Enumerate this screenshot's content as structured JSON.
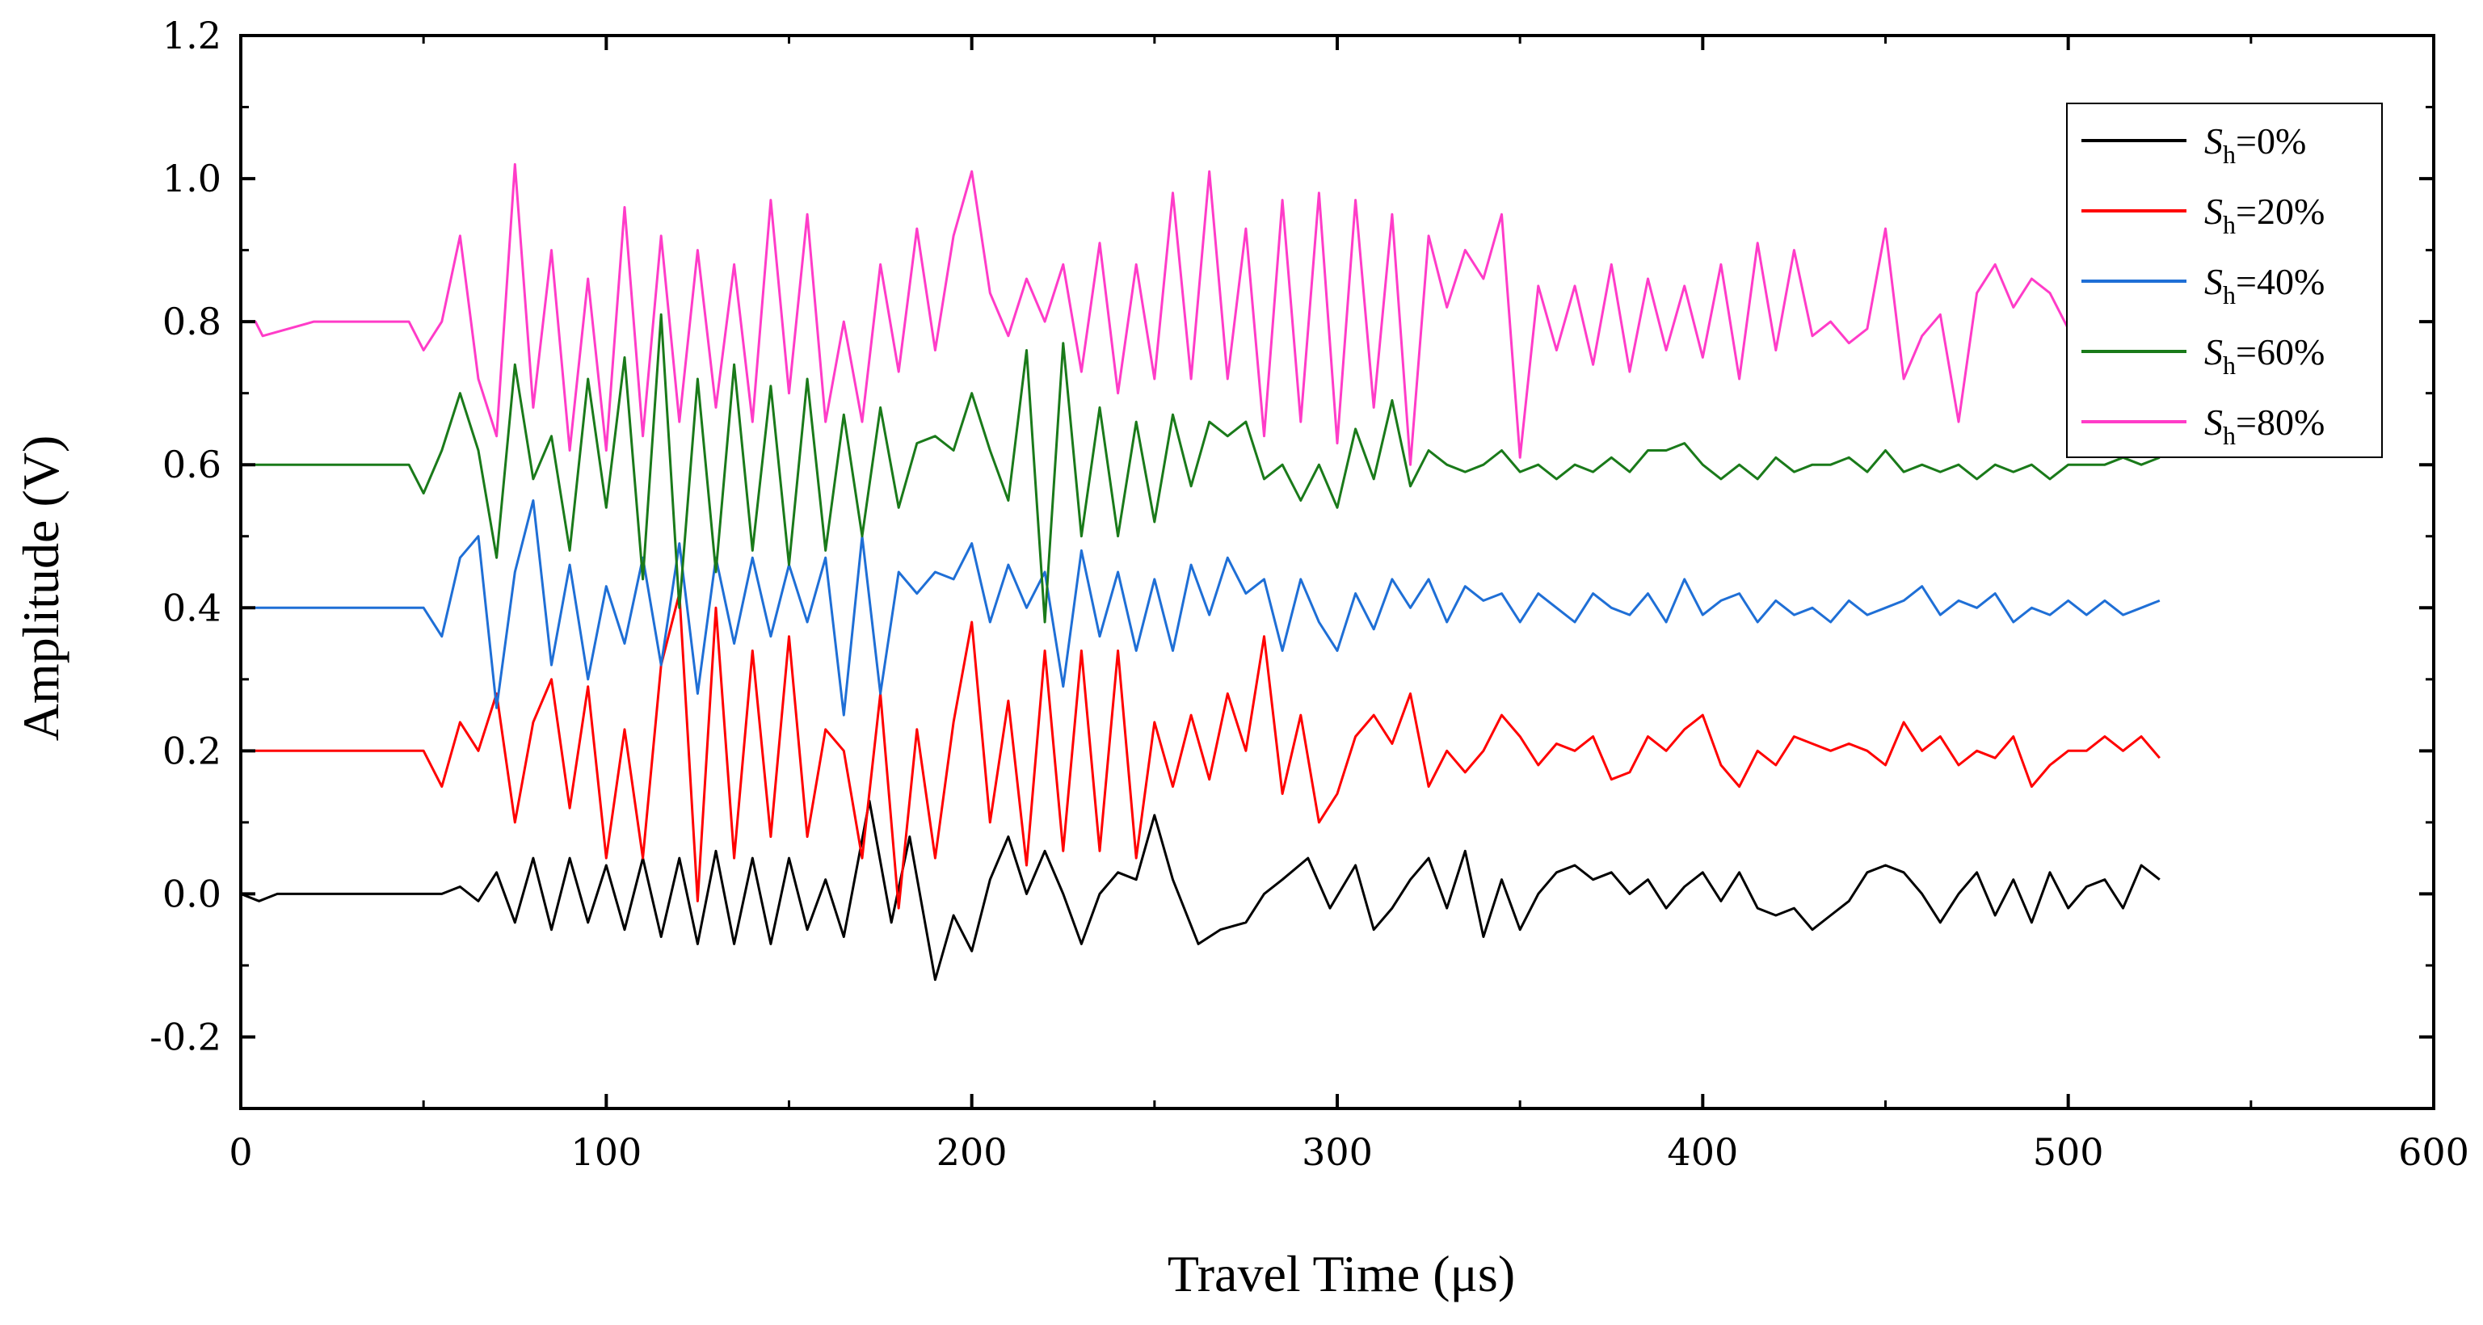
{
  "chart_data": {
    "type": "line",
    "title": "",
    "xlabel": "Travel Time (μs)",
    "ylabel": "Amplitude (V)",
    "xlim": [
      0,
      600
    ],
    "ylim": [
      -0.3,
      1.2
    ],
    "x_ticks": [
      0,
      100,
      200,
      300,
      400,
      500,
      600
    ],
    "x_tick_labels": [
      "0",
      "100",
      "200",
      "300",
      "400",
      "500",
      "600"
    ],
    "y_ticks": [
      -0.2,
      0.0,
      0.2,
      0.4,
      0.6,
      0.8,
      1.0,
      1.2
    ],
    "y_tick_labels": [
      "-0.2",
      "0.0",
      "0.2",
      "0.4",
      "0.6",
      "0.8",
      "1.0",
      "1.2"
    ],
    "grid": false,
    "legend_position": "top-right",
    "series": [
      {
        "name_symbol": "S",
        "name_subscript": "h",
        "name_suffix": "=0%",
        "color": "#000000",
        "x": [
          0,
          5,
          10,
          20,
          30,
          40,
          50,
          55,
          60,
          65,
          70,
          75,
          80,
          85,
          90,
          95,
          100,
          105,
          110,
          115,
          120,
          125,
          130,
          135,
          140,
          145,
          150,
          155,
          160,
          165,
          172,
          178,
          183,
          190,
          195,
          200,
          205,
          210,
          215,
          220,
          225,
          230,
          235,
          240,
          245,
          250,
          255,
          262,
          268,
          275,
          280,
          285,
          292,
          298,
          305,
          310,
          315,
          320,
          325,
          330,
          335,
          340,
          345,
          350,
          355,
          360,
          365,
          370,
          375,
          380,
          385,
          390,
          395,
          400,
          405,
          410,
          415,
          420,
          425,
          430,
          435,
          440,
          445,
          450,
          455,
          460,
          465,
          470,
          475,
          480,
          485,
          490,
          495,
          500,
          505,
          510,
          515,
          520,
          525
        ],
        "y": [
          0.0,
          -0.01,
          0.0,
          0.0,
          0.0,
          0.0,
          0.0,
          0.0,
          0.01,
          -0.01,
          0.03,
          -0.04,
          0.05,
          -0.05,
          0.05,
          -0.04,
          0.04,
          -0.05,
          0.05,
          -0.06,
          0.05,
          -0.07,
          0.06,
          -0.07,
          0.05,
          -0.07,
          0.05,
          -0.05,
          0.02,
          -0.06,
          0.13,
          -0.04,
          0.08,
          -0.12,
          -0.03,
          -0.08,
          0.02,
          0.08,
          0.0,
          0.06,
          0.0,
          -0.07,
          0.0,
          0.03,
          0.02,
          0.11,
          0.02,
          -0.07,
          -0.05,
          -0.04,
          0.0,
          0.02,
          0.05,
          -0.02,
          0.04,
          -0.05,
          -0.02,
          0.02,
          0.05,
          -0.02,
          0.06,
          -0.06,
          0.02,
          -0.05,
          0.0,
          0.03,
          0.04,
          0.02,
          0.03,
          0.0,
          0.02,
          -0.02,
          0.01,
          0.03,
          -0.01,
          0.03,
          -0.02,
          -0.03,
          -0.02,
          -0.05,
          -0.03,
          -0.01,
          0.03,
          0.04,
          0.03,
          0.0,
          -0.04,
          0.0,
          0.03,
          -0.03,
          0.02,
          -0.04,
          0.03,
          -0.02,
          0.01,
          0.02,
          -0.02,
          0.04,
          0.02
        ]
      },
      {
        "name_symbol": "S",
        "name_subscript": "h",
        "name_suffix": "=20%",
        "color": "#ff0000",
        "x": [
          0,
          20,
          40,
          50,
          55,
          60,
          65,
          70,
          75,
          80,
          85,
          90,
          95,
          100,
          105,
          110,
          115,
          120,
          125,
          130,
          135,
          140,
          145,
          150,
          155,
          160,
          165,
          170,
          175,
          180,
          185,
          190,
          195,
          200,
          205,
          210,
          215,
          220,
          225,
          230,
          235,
          240,
          245,
          250,
          255,
          260,
          265,
          270,
          275,
          280,
          285,
          290,
          295,
          300,
          305,
          310,
          315,
          320,
          325,
          330,
          335,
          340,
          345,
          350,
          355,
          360,
          365,
          370,
          375,
          380,
          385,
          390,
          395,
          400,
          405,
          410,
          415,
          420,
          425,
          430,
          435,
          440,
          445,
          450,
          455,
          460,
          465,
          470,
          475,
          480,
          485,
          490,
          495,
          500,
          505,
          510,
          515,
          520,
          525
        ],
        "y": [
          0.2,
          0.2,
          0.2,
          0.2,
          0.15,
          0.24,
          0.2,
          0.28,
          0.1,
          0.24,
          0.3,
          0.12,
          0.29,
          0.05,
          0.23,
          0.05,
          0.32,
          0.42,
          -0.01,
          0.4,
          0.05,
          0.34,
          0.08,
          0.36,
          0.08,
          0.23,
          0.2,
          0.05,
          0.28,
          -0.02,
          0.23,
          0.05,
          0.24,
          0.38,
          0.1,
          0.27,
          0.04,
          0.34,
          0.06,
          0.34,
          0.06,
          0.34,
          0.05,
          0.24,
          0.15,
          0.25,
          0.16,
          0.28,
          0.2,
          0.36,
          0.14,
          0.25,
          0.1,
          0.14,
          0.22,
          0.25,
          0.21,
          0.28,
          0.15,
          0.2,
          0.17,
          0.2,
          0.25,
          0.22,
          0.18,
          0.21,
          0.2,
          0.22,
          0.16,
          0.17,
          0.22,
          0.2,
          0.23,
          0.25,
          0.18,
          0.15,
          0.2,
          0.18,
          0.22,
          0.21,
          0.2,
          0.21,
          0.2,
          0.18,
          0.24,
          0.2,
          0.22,
          0.18,
          0.2,
          0.19,
          0.22,
          0.15,
          0.18,
          0.2,
          0.2,
          0.22,
          0.2,
          0.22,
          0.19
        ]
      },
      {
        "name_symbol": "S",
        "name_subscript": "h",
        "name_suffix": "=40%",
        "color": "#1f6fd6",
        "x": [
          0,
          20,
          40,
          50,
          55,
          60,
          65,
          70,
          75,
          80,
          85,
          90,
          95,
          100,
          105,
          110,
          115,
          120,
          125,
          130,
          135,
          140,
          145,
          150,
          155,
          160,
          165,
          170,
          175,
          180,
          185,
          190,
          195,
          200,
          205,
          210,
          215,
          220,
          225,
          230,
          235,
          240,
          245,
          250,
          255,
          260,
          265,
          270,
          275,
          280,
          285,
          290,
          295,
          300,
          305,
          310,
          315,
          320,
          325,
          330,
          335,
          340,
          345,
          350,
          355,
          360,
          365,
          370,
          375,
          380,
          385,
          390,
          395,
          400,
          405,
          410,
          415,
          420,
          425,
          430,
          435,
          440,
          445,
          450,
          455,
          460,
          465,
          470,
          475,
          480,
          485,
          490,
          495,
          500,
          505,
          510,
          515,
          520,
          525
        ],
        "y": [
          0.4,
          0.4,
          0.4,
          0.4,
          0.36,
          0.47,
          0.5,
          0.26,
          0.45,
          0.55,
          0.32,
          0.46,
          0.3,
          0.43,
          0.35,
          0.47,
          0.32,
          0.49,
          0.28,
          0.47,
          0.35,
          0.47,
          0.36,
          0.46,
          0.38,
          0.47,
          0.25,
          0.5,
          0.28,
          0.45,
          0.42,
          0.45,
          0.44,
          0.49,
          0.38,
          0.46,
          0.4,
          0.45,
          0.29,
          0.48,
          0.36,
          0.45,
          0.34,
          0.44,
          0.34,
          0.46,
          0.39,
          0.47,
          0.42,
          0.44,
          0.34,
          0.44,
          0.38,
          0.34,
          0.42,
          0.37,
          0.44,
          0.4,
          0.44,
          0.38,
          0.43,
          0.41,
          0.42,
          0.38,
          0.42,
          0.4,
          0.38,
          0.42,
          0.4,
          0.39,
          0.42,
          0.38,
          0.44,
          0.39,
          0.41,
          0.42,
          0.38,
          0.41,
          0.39,
          0.4,
          0.38,
          0.41,
          0.39,
          0.4,
          0.41,
          0.43,
          0.39,
          0.41,
          0.4,
          0.42,
          0.38,
          0.4,
          0.39,
          0.41,
          0.39,
          0.41,
          0.39,
          0.4,
          0.41
        ]
      },
      {
        "name_symbol": "S",
        "name_subscript": "h",
        "name_suffix": "=60%",
        "color": "#1a7a1a",
        "x": [
          0,
          20,
          40,
          46,
          50,
          55,
          60,
          65,
          70,
          75,
          80,
          85,
          90,
          95,
          100,
          105,
          110,
          115,
          120,
          125,
          130,
          135,
          140,
          145,
          150,
          155,
          160,
          165,
          170,
          175,
          180,
          185,
          190,
          195,
          200,
          205,
          210,
          215,
          220,
          225,
          230,
          235,
          240,
          245,
          250,
          255,
          260,
          265,
          270,
          275,
          280,
          285,
          290,
          295,
          300,
          305,
          310,
          315,
          320,
          325,
          330,
          335,
          340,
          345,
          350,
          355,
          360,
          365,
          370,
          375,
          380,
          385,
          390,
          395,
          400,
          405,
          410,
          415,
          420,
          425,
          430,
          435,
          440,
          445,
          450,
          455,
          460,
          465,
          470,
          475,
          480,
          485,
          490,
          495,
          500,
          505,
          510,
          515,
          520,
          525
        ],
        "y": [
          0.6,
          0.6,
          0.6,
          0.6,
          0.56,
          0.62,
          0.7,
          0.62,
          0.47,
          0.74,
          0.58,
          0.64,
          0.48,
          0.72,
          0.54,
          0.75,
          0.44,
          0.81,
          0.4,
          0.72,
          0.45,
          0.74,
          0.48,
          0.71,
          0.46,
          0.72,
          0.48,
          0.67,
          0.5,
          0.68,
          0.54,
          0.63,
          0.64,
          0.62,
          0.7,
          0.62,
          0.55,
          0.76,
          0.38,
          0.77,
          0.5,
          0.68,
          0.5,
          0.66,
          0.52,
          0.67,
          0.57,
          0.66,
          0.64,
          0.66,
          0.58,
          0.6,
          0.55,
          0.6,
          0.54,
          0.65,
          0.58,
          0.69,
          0.57,
          0.62,
          0.6,
          0.59,
          0.6,
          0.62,
          0.59,
          0.6,
          0.58,
          0.6,
          0.59,
          0.61,
          0.59,
          0.62,
          0.62,
          0.63,
          0.6,
          0.58,
          0.6,
          0.58,
          0.61,
          0.59,
          0.6,
          0.6,
          0.61,
          0.59,
          0.62,
          0.59,
          0.6,
          0.59,
          0.6,
          0.58,
          0.6,
          0.59,
          0.6,
          0.58,
          0.6,
          0.6,
          0.6,
          0.61,
          0.6,
          0.61
        ]
      },
      {
        "name_symbol": "S",
        "name_subscript": "h",
        "name_suffix": "=80%",
        "color": "#ff3cc8",
        "x": [
          0,
          4,
          6,
          20,
          40,
          46,
          50,
          55,
          60,
          65,
          70,
          75,
          80,
          85,
          90,
          95,
          100,
          105,
          110,
          115,
          120,
          125,
          130,
          135,
          140,
          145,
          150,
          155,
          160,
          165,
          170,
          175,
          180,
          185,
          190,
          195,
          200,
          205,
          210,
          215,
          220,
          225,
          230,
          235,
          240,
          245,
          250,
          255,
          260,
          265,
          270,
          275,
          280,
          285,
          290,
          295,
          300,
          305,
          310,
          315,
          320,
          325,
          330,
          335,
          340,
          345,
          350,
          355,
          360,
          365,
          370,
          375,
          380,
          385,
          390,
          395,
          400,
          405,
          410,
          415,
          420,
          425,
          430,
          435,
          440,
          445,
          450,
          455,
          460,
          465,
          470,
          475,
          480,
          485,
          490,
          495,
          500,
          505,
          510,
          515,
          520,
          525
        ],
        "y": [
          0.8,
          0.8,
          0.78,
          0.8,
          0.8,
          0.8,
          0.76,
          0.8,
          0.92,
          0.72,
          0.64,
          1.02,
          0.68,
          0.9,
          0.62,
          0.86,
          0.62,
          0.96,
          0.64,
          0.92,
          0.66,
          0.9,
          0.68,
          0.88,
          0.66,
          0.97,
          0.7,
          0.95,
          0.66,
          0.8,
          0.66,
          0.88,
          0.73,
          0.93,
          0.76,
          0.92,
          1.01,
          0.84,
          0.78,
          0.86,
          0.8,
          0.88,
          0.73,
          0.91,
          0.7,
          0.88,
          0.72,
          0.98,
          0.72,
          1.01,
          0.72,
          0.93,
          0.64,
          0.97,
          0.66,
          0.98,
          0.63,
          0.97,
          0.68,
          0.95,
          0.6,
          0.92,
          0.82,
          0.9,
          0.86,
          0.95,
          0.61,
          0.85,
          0.76,
          0.85,
          0.74,
          0.88,
          0.73,
          0.86,
          0.76,
          0.85,
          0.75,
          0.88,
          0.72,
          0.91,
          0.76,
          0.9,
          0.78,
          0.8,
          0.77,
          0.79,
          0.93,
          0.72,
          0.78,
          0.81,
          0.66,
          0.84,
          0.88,
          0.82,
          0.86,
          0.84,
          0.79,
          0.81,
          0.8,
          0.8,
          0.8,
          0.81
        ]
      }
    ]
  }
}
